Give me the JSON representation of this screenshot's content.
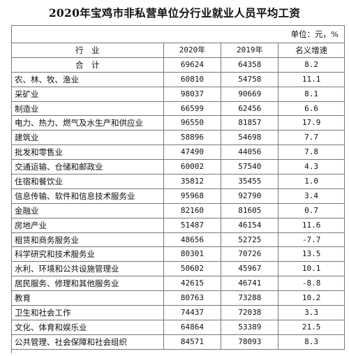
{
  "title": "2020年宝鸡市非私营单位分行业就业人员平均工资",
  "unit": "单位：元，%",
  "headers": [
    "行　业",
    "2020年",
    "2019年",
    "名义增速"
  ],
  "rows": [
    [
      "合　计",
      "69624",
      "64358",
      "8.2"
    ],
    [
      "农、林、牧、渔业",
      "60810",
      "54758",
      "11.1"
    ],
    [
      "采矿业",
      "98037",
      "90669",
      "8.1"
    ],
    [
      "制造业",
      "66599",
      "62456",
      "6.6"
    ],
    [
      "电力、热力、燃气及水生产和供应业",
      "96550",
      "81857",
      "17.9"
    ],
    [
      "建筑业",
      "58896",
      "54698",
      "7.7"
    ],
    [
      "批发和零售业",
      "47490",
      "44056",
      "7.8"
    ],
    [
      "交通运输、仓储和邮政业",
      "60002",
      "57540",
      "4.3"
    ],
    [
      "住宿和餐饮业",
      "35812",
      "35455",
      "1.0"
    ],
    [
      "信息传输、软件和信息技术服务业",
      "95968",
      "92790",
      "3.4"
    ],
    [
      "金融业",
      "82160",
      "81605",
      "0.7"
    ],
    [
      "房地产业",
      "51487",
      "46154",
      "11.6"
    ],
    [
      "租赁和商务服务业",
      "48656",
      "52725",
      "-7.7"
    ],
    [
      "科学研究和技术服务业",
      "80301",
      "70726",
      "13.5"
    ],
    [
      "水利、环境和公共设施管理业",
      "50602",
      "45967",
      "10.1"
    ],
    [
      "居民服务、修理和其他服务业",
      "42615",
      "46741",
      "-8.8"
    ],
    [
      "教育",
      "80763",
      "73288",
      "10.2"
    ],
    [
      "卫生和社会工作",
      "74437",
      "72038",
      "3.3"
    ],
    [
      "文化、体育和娱乐业",
      "64864",
      "53389",
      "21.5"
    ],
    [
      "公共管理、社会保障和社会组织",
      "84571",
      "78093",
      "8.3"
    ]
  ]
}
